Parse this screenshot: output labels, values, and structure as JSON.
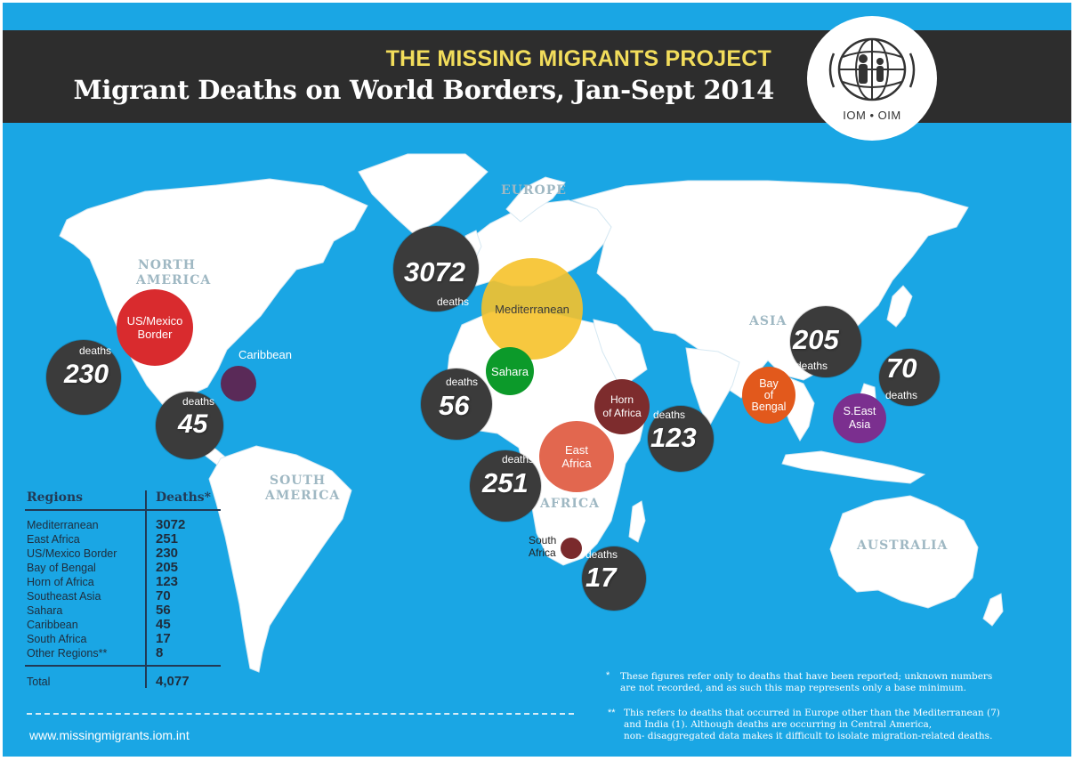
{
  "header": {
    "project_title": "THE MISSING MIGRANTS PROJECT",
    "main_title": "Migrant Deaths on World Borders, Jan-Sept 2014"
  },
  "logo": {
    "text": "IOM • OIM",
    "icon": "iom-family-globe-icon"
  },
  "continents": {
    "europe": "EUROPE",
    "north_america_1": "NORTH",
    "north_america_2": "AMERICA",
    "south_america_1": "SOUTH",
    "south_america_2": "AMERICA",
    "africa": "AFRICA",
    "asia": "ASIA",
    "australia": "AUSTRALIA"
  },
  "bubbles": {
    "deaths_label": "deaths",
    "mediterranean": "3072",
    "us_mexico": "230",
    "caribbean": "45",
    "sahara": "56",
    "east_africa": "251",
    "horn_of_africa": "123",
    "south_africa": "17",
    "bay_of_bengal": "205",
    "southeast_asia": "70"
  },
  "regions": {
    "mediterranean": "Mediterranean",
    "us_mexico_1": "US/Mexico",
    "us_mexico_2": "Border",
    "caribbean": "Caribbean",
    "sahara": "Sahara",
    "horn_1": "Horn",
    "horn_2": "of Africa",
    "east_africa_1": "East",
    "east_africa_2": "Africa",
    "south_africa_1": "South",
    "south_africa_2": "Africa",
    "bengal_1": "Bay",
    "bengal_2": "of",
    "bengal_3": "Bengal",
    "seasia_1": "S.East",
    "seasia_2": "Asia"
  },
  "colors": {
    "ocean": "#1aa6e4",
    "bubble": "#3b3b3b",
    "mediterranean": "#f6c22a",
    "us_mexico": "#d92b2e",
    "caribbean": "#5a2a58",
    "sahara": "#0c9a2a",
    "horn": "#7d2c2d",
    "east_africa": "#e2674f",
    "south_africa": "#7a2a2c",
    "bengal": "#e2591c",
    "seasia": "#7b2f8f"
  },
  "legend": {
    "header_region": "Regions",
    "header_deaths": "Deaths*",
    "rows": [
      {
        "name": "Mediterranean",
        "value": "3072"
      },
      {
        "name": "East Africa",
        "value": "251"
      },
      {
        "name": "US/Mexico Border",
        "value": "230"
      },
      {
        "name": "Bay of Bengal",
        "value": "205"
      },
      {
        "name": "Horn of Africa",
        "value": "123"
      },
      {
        "name": "Southeast Asia",
        "value": "70"
      },
      {
        "name": "Sahara",
        "value": "56"
      },
      {
        "name": "Caribbean",
        "value": "45"
      },
      {
        "name": "South Africa",
        "value": "17"
      },
      {
        "name": "Other Regions**",
        "value": "8"
      }
    ],
    "total_label": "Total",
    "total_value": "4,077"
  },
  "footer": {
    "website": "www.missingmigrants.iom.int",
    "note1_mark": "*",
    "note1_line1": "These figures refer only to deaths that have been reported; unknown numbers",
    "note1_line2": "are not recorded, and as such this map represents only a base minimum.",
    "note2_mark": "**",
    "note2_line1": "This refers to deaths that occurred in Europe other than the Mediterranean (7)",
    "note2_line2": "and India (1). Although deaths are occurring in Central America,",
    "note2_line3": "non- disaggregated data makes it difficult to isolate migration-related deaths."
  }
}
